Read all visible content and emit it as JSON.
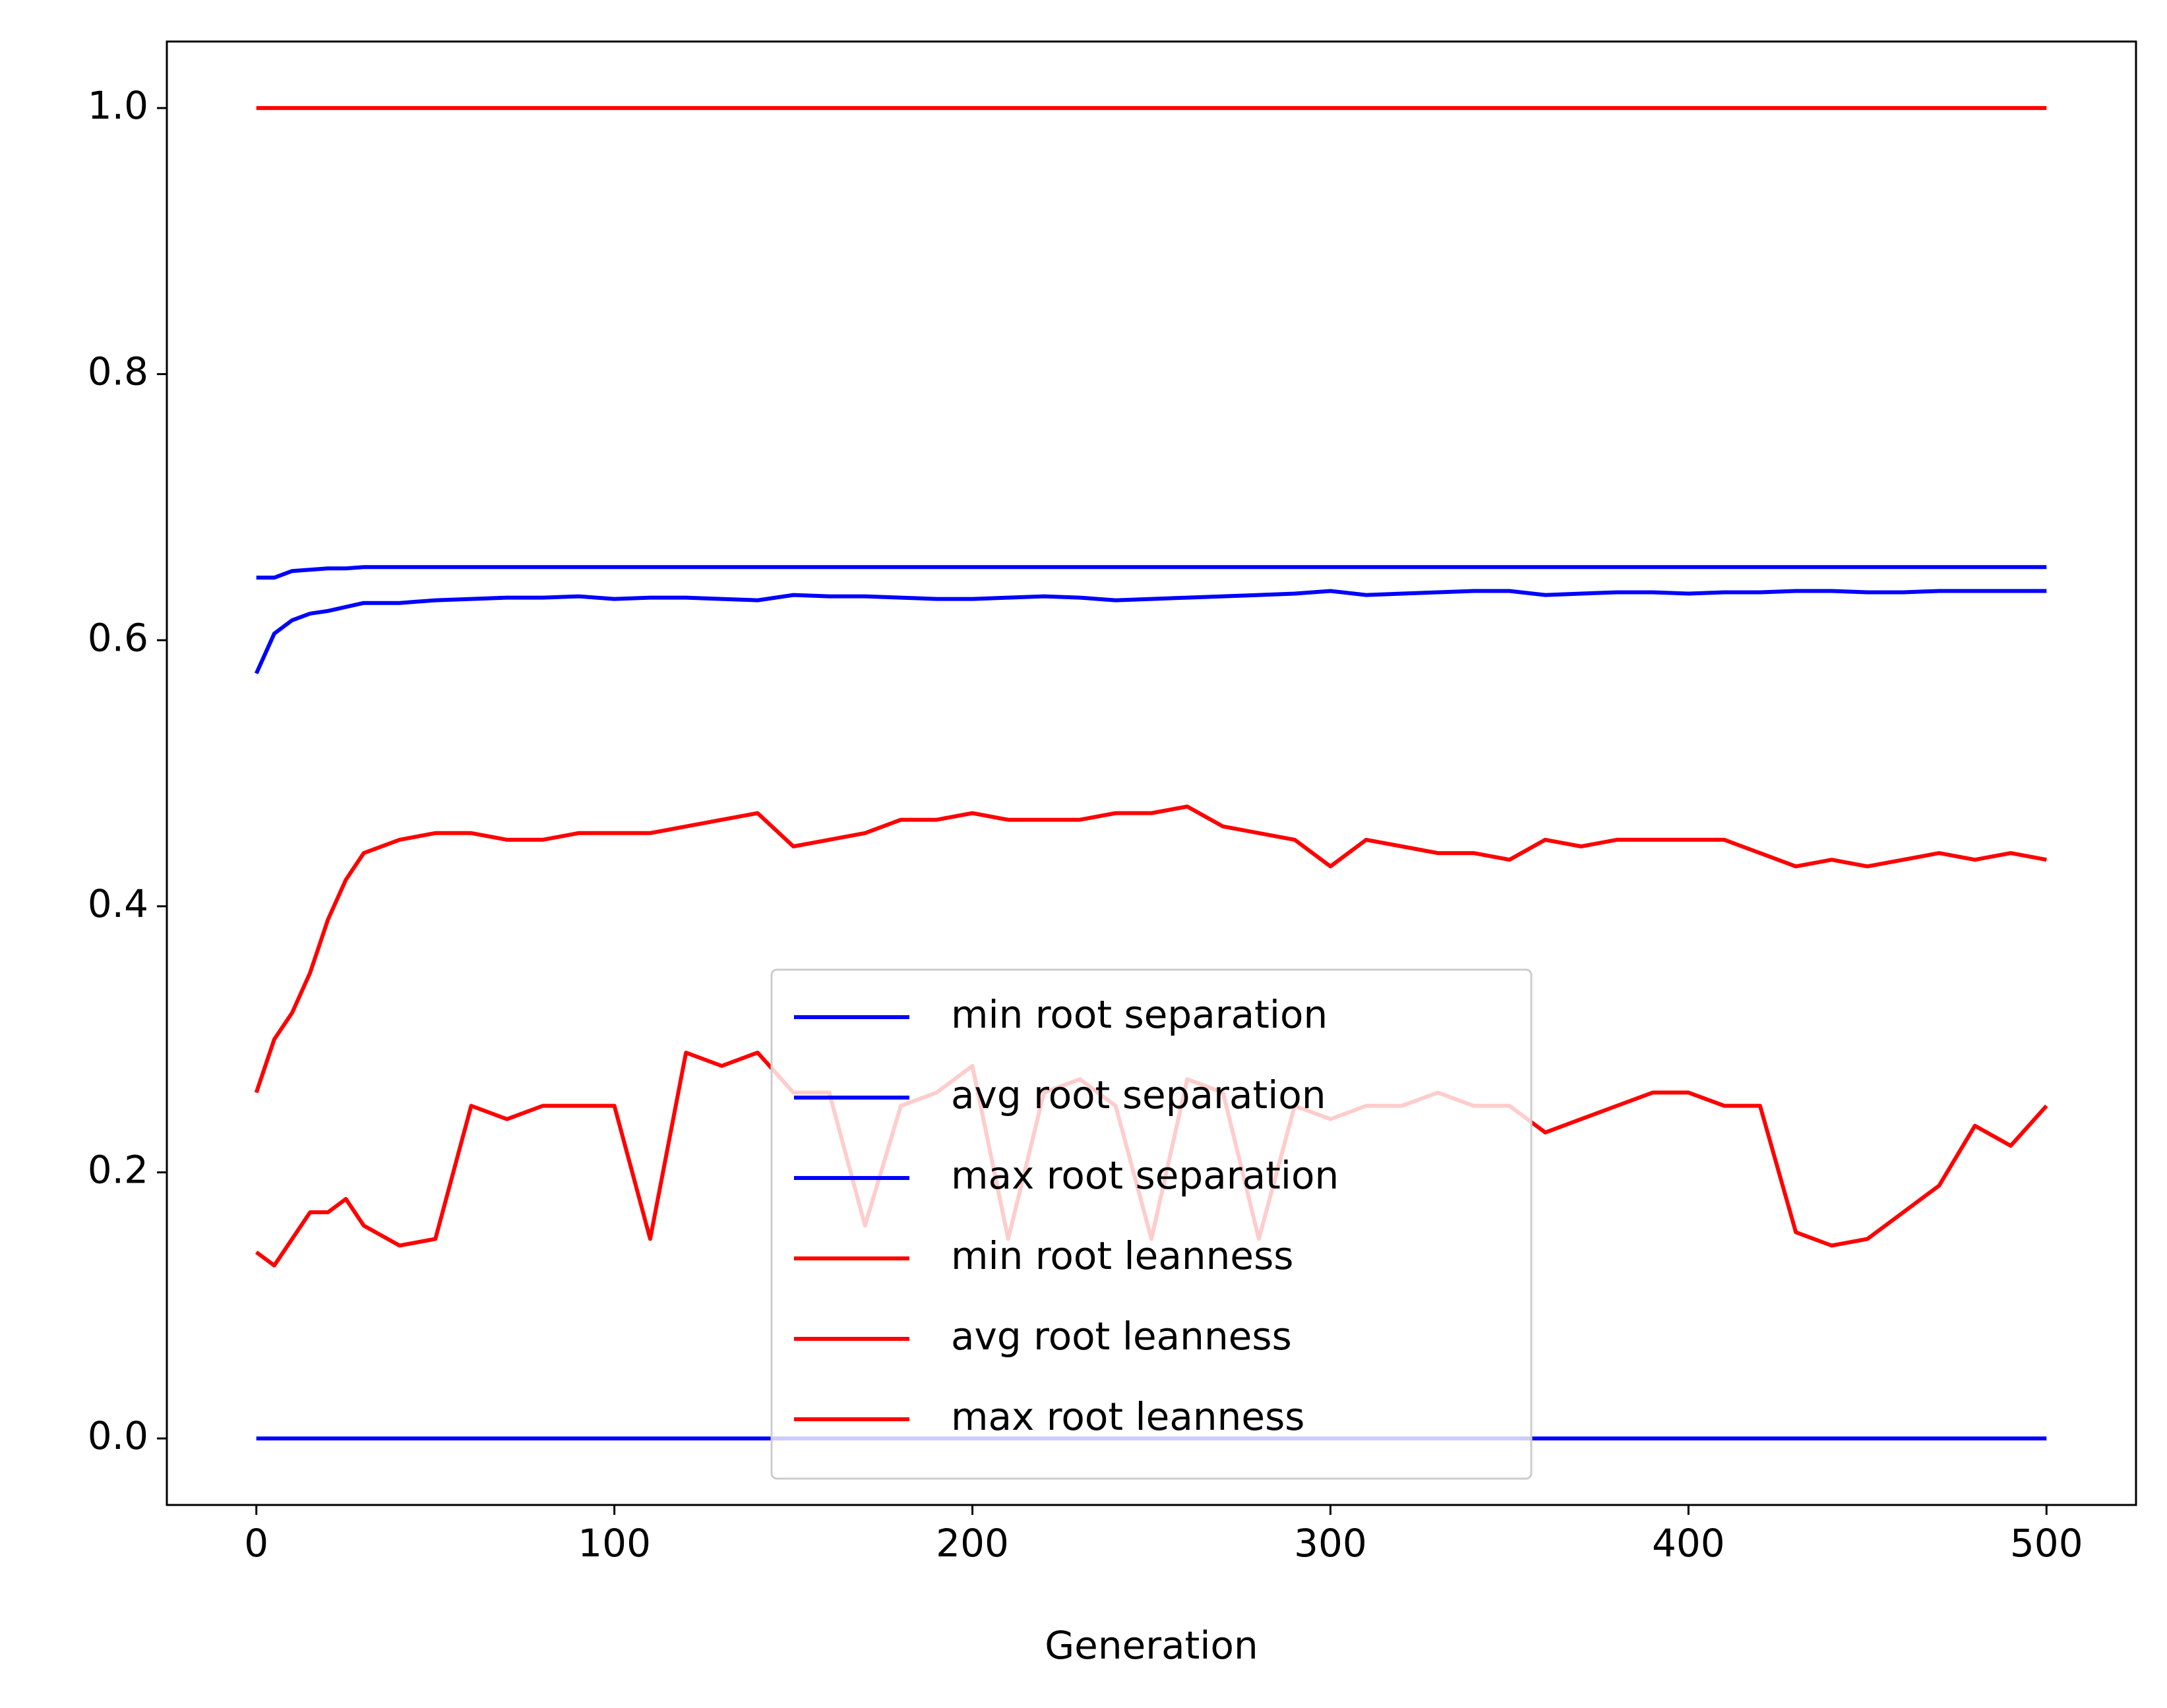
{
  "chart_data": {
    "type": "line",
    "xlabel": "Generation",
    "x": [
      0,
      5,
      10,
      15,
      20,
      25,
      30,
      40,
      50,
      60,
      70,
      80,
      90,
      100,
      110,
      120,
      130,
      140,
      150,
      160,
      170,
      180,
      190,
      200,
      210,
      220,
      230,
      240,
      250,
      260,
      270,
      280,
      290,
      300,
      310,
      320,
      330,
      340,
      350,
      360,
      370,
      380,
      390,
      400,
      410,
      420,
      430,
      440,
      450,
      460,
      470,
      480,
      490,
      500
    ],
    "series": [
      {
        "name": "min root separation",
        "color": "#0000ff",
        "values": [
          0,
          0,
          0,
          0,
          0,
          0,
          0,
          0,
          0,
          0,
          0,
          0,
          0,
          0,
          0,
          0,
          0,
          0,
          0,
          0,
          0,
          0,
          0,
          0,
          0,
          0,
          0,
          0,
          0,
          0,
          0,
          0,
          0,
          0,
          0,
          0,
          0,
          0,
          0,
          0,
          0,
          0,
          0,
          0,
          0,
          0,
          0,
          0,
          0,
          0,
          0,
          0,
          0,
          0
        ]
      },
      {
        "name": "avg root separation",
        "color": "#0000ff",
        "values": [
          0.575,
          0.605,
          0.615,
          0.62,
          0.622,
          0.625,
          0.628,
          0.628,
          0.63,
          0.631,
          0.632,
          0.632,
          0.633,
          0.631,
          0.632,
          0.632,
          0.631,
          0.63,
          0.634,
          0.633,
          0.633,
          0.632,
          0.631,
          0.631,
          0.632,
          0.633,
          0.632,
          0.63,
          0.631,
          0.632,
          0.633,
          0.634,
          0.635,
          0.637,
          0.634,
          0.635,
          0.636,
          0.637,
          0.637,
          0.634,
          0.635,
          0.636,
          0.636,
          0.635,
          0.636,
          0.636,
          0.637,
          0.637,
          0.636,
          0.636,
          0.637,
          0.637,
          0.637,
          0.637
        ]
      },
      {
        "name": "max root separation",
        "color": "#0000ff",
        "values": [
          0.647,
          0.647,
          0.652,
          0.653,
          0.654,
          0.654,
          0.655,
          0.655,
          0.655,
          0.655,
          0.655,
          0.655,
          0.655,
          0.655,
          0.655,
          0.655,
          0.655,
          0.655,
          0.655,
          0.655,
          0.655,
          0.655,
          0.655,
          0.655,
          0.655,
          0.655,
          0.655,
          0.655,
          0.655,
          0.655,
          0.655,
          0.655,
          0.655,
          0.655,
          0.655,
          0.655,
          0.655,
          0.655,
          0.655,
          0.655,
          0.655,
          0.655,
          0.655,
          0.655,
          0.655,
          0.655,
          0.655,
          0.655,
          0.655,
          0.655,
          0.655,
          0.655,
          0.655,
          0.655
        ]
      },
      {
        "name": "min root leanness",
        "color": "#ff0000",
        "values": [
          0.14,
          0.13,
          0.15,
          0.17,
          0.17,
          0.18,
          0.16,
          0.145,
          0.15,
          0.25,
          0.24,
          0.25,
          0.25,
          0.25,
          0.15,
          0.29,
          0.28,
          0.29,
          0.26,
          0.26,
          0.16,
          0.25,
          0.26,
          0.28,
          0.15,
          0.26,
          0.27,
          0.25,
          0.15,
          0.27,
          0.26,
          0.15,
          0.25,
          0.24,
          0.25,
          0.25,
          0.26,
          0.25,
          0.25,
          0.23,
          0.24,
          0.25,
          0.26,
          0.26,
          0.25,
          0.25,
          0.155,
          0.145,
          0.15,
          0.17,
          0.19,
          0.235,
          0.22,
          0.25
        ]
      },
      {
        "name": "avg root leanness",
        "color": "#ff0000",
        "values": [
          0.26,
          0.3,
          0.32,
          0.35,
          0.39,
          0.42,
          0.44,
          0.45,
          0.455,
          0.455,
          0.45,
          0.45,
          0.455,
          0.455,
          0.455,
          0.46,
          0.465,
          0.47,
          0.445,
          0.45,
          0.455,
          0.465,
          0.465,
          0.47,
          0.465,
          0.465,
          0.465,
          0.47,
          0.47,
          0.475,
          0.46,
          0.455,
          0.45,
          0.43,
          0.45,
          0.445,
          0.44,
          0.44,
          0.435,
          0.45,
          0.445,
          0.45,
          0.45,
          0.45,
          0.45,
          0.44,
          0.43,
          0.435,
          0.43,
          0.435,
          0.44,
          0.435,
          0.44,
          0.435
        ]
      },
      {
        "name": "max root leanness",
        "color": "#ff0000",
        "values": [
          1,
          1,
          1,
          1,
          1,
          1,
          1,
          1,
          1,
          1,
          1,
          1,
          1,
          1,
          1,
          1,
          1,
          1,
          1,
          1,
          1,
          1,
          1,
          1,
          1,
          1,
          1,
          1,
          1,
          1,
          1,
          1,
          1,
          1,
          1,
          1,
          1,
          1,
          1,
          1,
          1,
          1,
          1,
          1,
          1,
          1,
          1,
          1,
          1,
          1,
          1,
          1,
          1,
          1
        ]
      }
    ],
    "xlim": [
      -25,
      525
    ],
    "xticks": [
      0,
      100,
      200,
      300,
      400,
      500
    ],
    "ylim": [
      -0.05,
      1.05
    ],
    "yticks": [
      {
        "value": 0,
        "label": "0.0"
      },
      0.2,
      0.4,
      0.6,
      0.8,
      {
        "value": 1,
        "label": "1.0"
      }
    ],
    "legend": "lower center"
  }
}
